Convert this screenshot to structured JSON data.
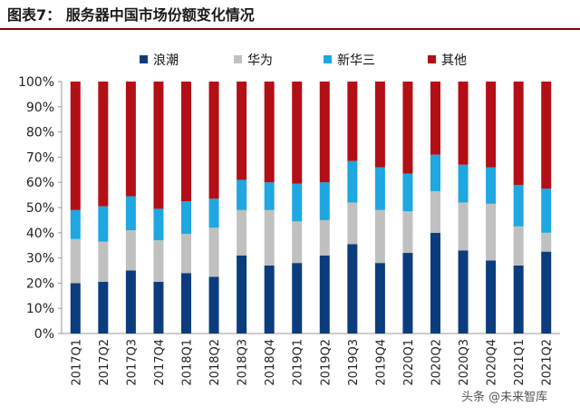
{
  "title": "图表7：  服务器中国市场份额变化情况",
  "watermark": "头条 @未来智库",
  "colors": {
    "title_rule": "#8b0000",
    "axis": "#999999",
    "series": [
      "#0b3c7d",
      "#c0c0c0",
      "#1ea7e0",
      "#b30f16"
    ]
  },
  "chart_data": {
    "type": "bar",
    "stacked": true,
    "title": "服务器中国市场份额变化情况",
    "xlabel": "",
    "ylabel": "",
    "ylim": [
      0,
      100
    ],
    "yticks": [
      "0%",
      "10%",
      "20%",
      "30%",
      "40%",
      "50%",
      "60%",
      "70%",
      "80%",
      "90%",
      "100%"
    ],
    "legend_position": "top",
    "categories": [
      "2017Q1",
      "2017Q2",
      "2017Q3",
      "2017Q4",
      "2018Q1",
      "2018Q2",
      "2018Q3",
      "2018Q4",
      "2019Q1",
      "2019Q2",
      "2019Q3",
      "2019Q4",
      "2020Q1",
      "2020Q2",
      "2020Q3",
      "2020Q4",
      "2021Q1",
      "2021Q2"
    ],
    "series": [
      {
        "name": "浪潮",
        "values": [
          20,
          20.5,
          25,
          20.5,
          24,
          22.5,
          31,
          27,
          28,
          31,
          35.5,
          28,
          32,
          40,
          33,
          29,
          27,
          32.5
        ]
      },
      {
        "name": "华为",
        "values": [
          17.5,
          16,
          16,
          16.5,
          15.5,
          19.5,
          18,
          22,
          16.5,
          14,
          16.5,
          21,
          16.5,
          16.5,
          19,
          22.5,
          15.5,
          7.5
        ]
      },
      {
        "name": "新华三",
        "values": [
          11.5,
          14,
          13.5,
          12.5,
          13,
          11.5,
          12,
          11,
          15,
          15,
          16.5,
          17,
          15,
          14.5,
          15,
          14.5,
          16.5,
          17.5
        ]
      },
      {
        "name": "其他",
        "values": [
          51,
          49.5,
          45.5,
          50.5,
          47.5,
          46.5,
          39,
          40,
          40.5,
          40,
          31.5,
          34,
          36.5,
          29,
          33,
          34,
          41,
          42.5
        ]
      }
    ]
  }
}
